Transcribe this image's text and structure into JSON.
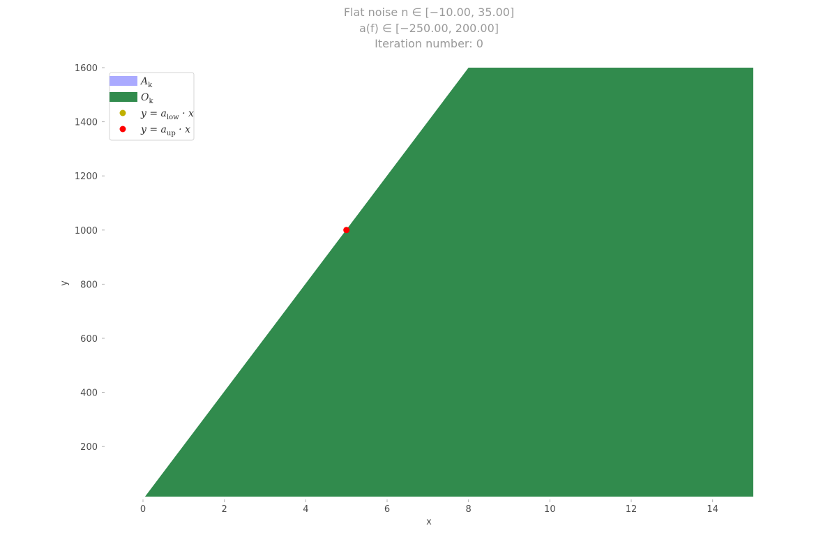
{
  "chart_data": {
    "type": "area",
    "title_lines": [
      "Flat noise n ∈ [−10.00, 35.00]",
      "a(f) ∈ [−250.00, 200.00]",
      "Iteration number: 0"
    ],
    "xlabel": "x",
    "ylabel": "y",
    "xlim": [
      0,
      15
    ],
    "ylim": [
      15,
      1600
    ],
    "x_ticks": [
      0,
      2,
      4,
      6,
      8,
      10,
      12,
      14
    ],
    "y_ticks": [
      200,
      400,
      600,
      800,
      1000,
      1200,
      1400,
      1600
    ],
    "grid": false,
    "legend_position": "upper-left",
    "legend": [
      {
        "key": "A",
        "sub": "k",
        "label": "A_k",
        "marker": "patch",
        "color": "#aaaaff"
      },
      {
        "key": "O",
        "sub": "k",
        "label": "O_k",
        "marker": "patch",
        "color": "#318b4d"
      },
      {
        "pre": "y = a",
        "sub": "low",
        "post": " · x",
        "label": "y = a_low · x",
        "marker": "dot",
        "color": "#c0b000"
      },
      {
        "pre": "y = a",
        "sub": "up",
        "post": " · x",
        "label": "y = a_up · x",
        "marker": "dot",
        "color": "#ff0000"
      }
    ],
    "series": [
      {
        "name": "O_k",
        "kind": "polygon",
        "color": "#318b4d",
        "points": [
          [
            0.05,
            15
          ],
          [
            8.0,
            1600
          ],
          [
            15,
            1600
          ],
          [
            15,
            15
          ]
        ]
      },
      {
        "name": "y = a_up · x",
        "kind": "point",
        "color": "#ff0000",
        "points": [
          [
            5,
            1000
          ]
        ]
      }
    ]
  }
}
